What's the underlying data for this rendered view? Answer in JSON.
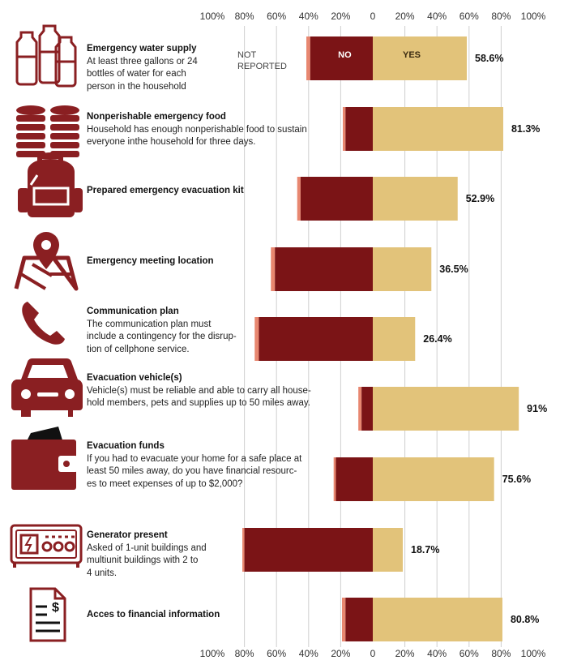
{
  "colors": {
    "no": "#7b1416",
    "yes": "#e2c37a",
    "not_reported": "#e88770",
    "icon": "#8a1f22",
    "grid": "#cfcfcf"
  },
  "legend": {
    "no": "NO",
    "yes": "YES",
    "not_reported_line1": "NOT",
    "not_reported_line2": "REPORTED"
  },
  "axis": {
    "left_ticks": [
      "100%",
      "80%",
      "60%",
      "40%",
      "20%",
      "0"
    ],
    "right_ticks": [
      "20%",
      "40%",
      "60%",
      "80%",
      "100%"
    ]
  },
  "rows": [
    {
      "title": "Emergency water supply",
      "desc": [
        "At least three gallons or 24",
        "bottles of water for each",
        "person in the household"
      ],
      "icon": "water-bottles-icon"
    },
    {
      "title": "Nonperishable emergency food",
      "desc": [
        "Household has enough nonperishable food to sustain",
        "everyone inthe household for three days."
      ],
      "icon": "food-cans-icon"
    },
    {
      "title": "Prepared emergency evacuation kit",
      "desc": [],
      "icon": "backpack-icon"
    },
    {
      "title": "Emergency meeting location",
      "desc": [],
      "icon": "map-pin-icon"
    },
    {
      "title": "Communication plan",
      "desc": [
        "The communication plan must",
        "include a contingency for the disrup-",
        "tion of cellphone service."
      ],
      "icon": "phone-icon"
    },
    {
      "title": "Evacuation vehicle(s)",
      "desc": [
        "Vehicle(s) must be reliable and able to carry all house-",
        "hold members, pets and supplies up to 50 miles away."
      ],
      "icon": "car-icon"
    },
    {
      "title": "Evacuation funds",
      "desc": [
        "If you had to evacuate your home for a safe place at",
        "least 50 miles away, do you have financial resourc-",
        "es to meet expenses of up to $2,000?"
      ],
      "icon": "wallet-icon"
    },
    {
      "title": "Generator present",
      "desc": [
        "Asked of 1-unit buildings and",
        "multiunit buildings with 2 to",
        "4 units."
      ],
      "icon": "generator-icon"
    },
    {
      "title": "Acces to financial information",
      "desc": [],
      "icon": "financial-document-icon"
    }
  ],
  "chart_data": {
    "type": "bar",
    "orientation": "horizontal-diverging",
    "categories": [
      "Emergency water supply",
      "Nonperishable emergency food",
      "Prepared emergency evacuation kit",
      "Emergency meeting location",
      "Communication plan",
      "Evacuation vehicle(s)",
      "Evacuation funds",
      "Generator present",
      "Acces to financial information"
    ],
    "series": [
      {
        "name": "YES",
        "values": [
          58.6,
          81.3,
          52.9,
          36.5,
          26.4,
          91,
          75.6,
          18.7,
          80.8
        ]
      },
      {
        "name": "NO",
        "values": [
          39,
          17,
          45,
          61,
          71,
          7,
          23,
          80,
          17
        ]
      },
      {
        "name": "NOT REPORTED",
        "values": [
          2.4,
          1.7,
          2.1,
          2.5,
          2.6,
          2.0,
          1.4,
          1.3,
          2.2
        ]
      }
    ],
    "value_labels": [
      "58.6%",
      "81.3%",
      "52.9%",
      "36.5%",
      "26.4%",
      "91%",
      "75.6%",
      "18.7%",
      "80.8%"
    ],
    "xlim": [
      -100,
      100
    ],
    "grid": true
  }
}
